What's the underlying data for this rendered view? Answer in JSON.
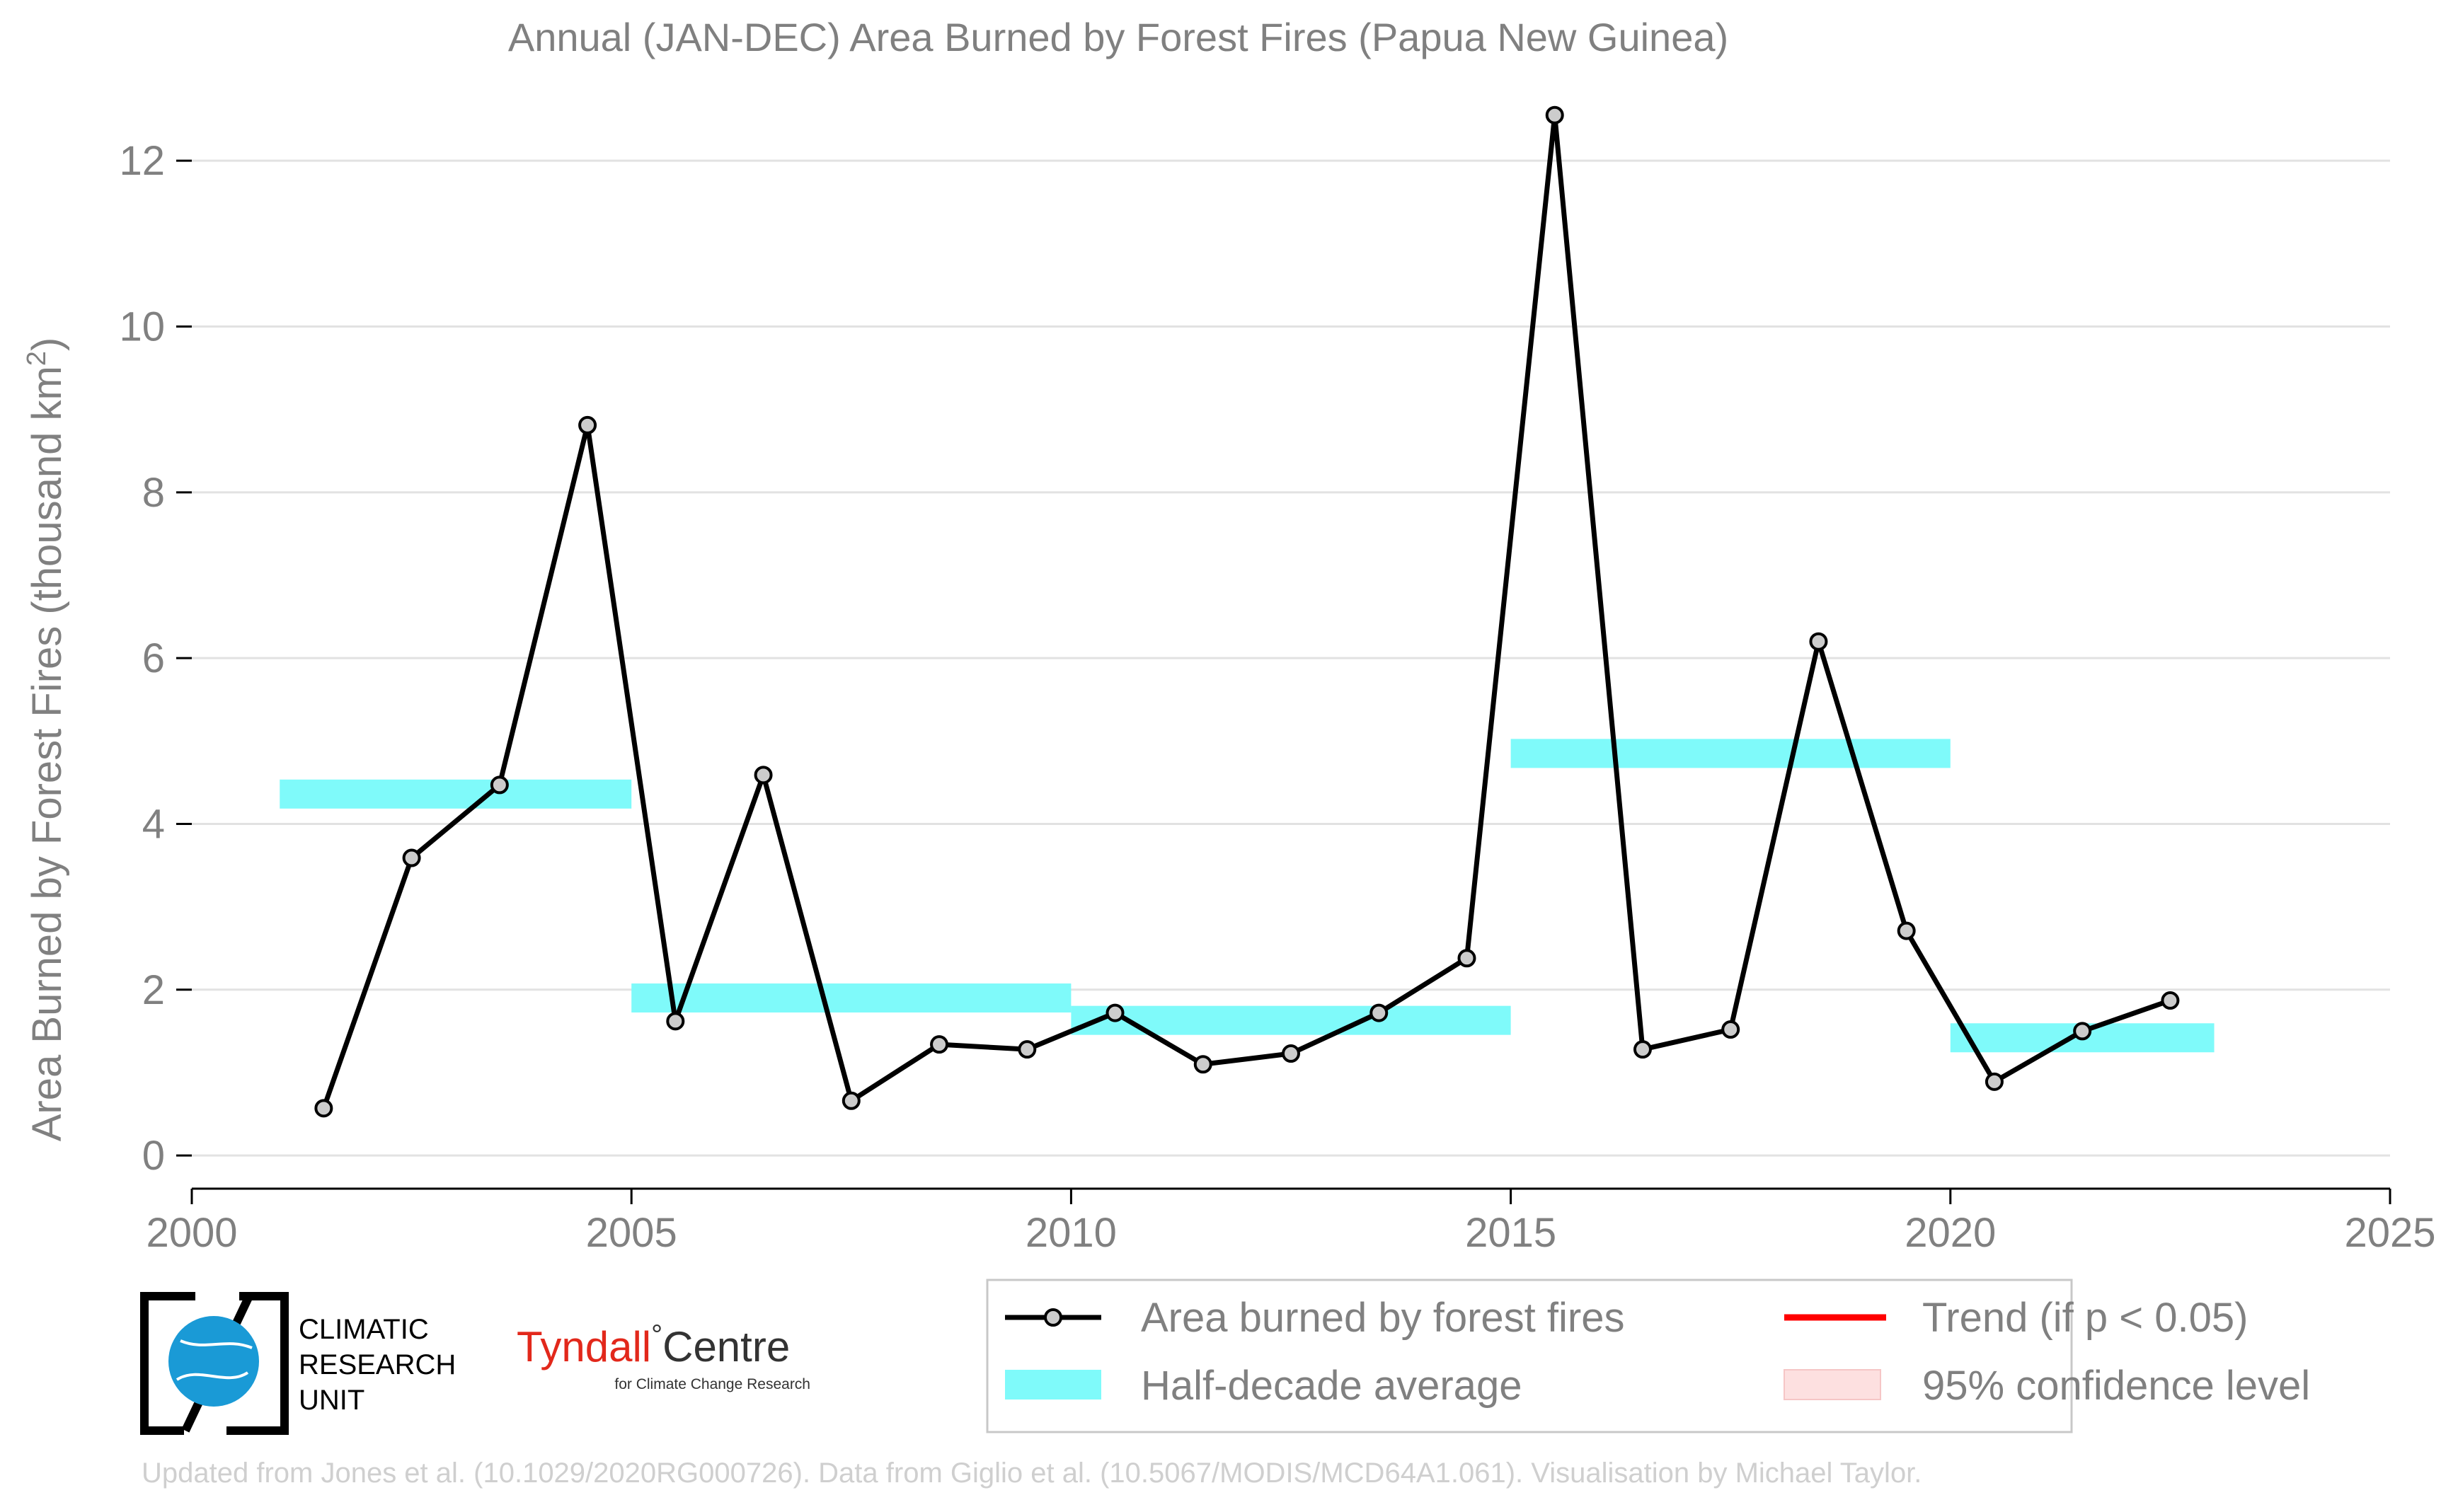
{
  "chart_data": {
    "type": "line",
    "title": "Annual (JAN-DEC) Area Burned by Forest Fires (Papua New Guinea)",
    "ylabel": "Area Burned by Forest Fires (thousand km",
    "ylabel_sup": "2",
    "ylabel_tail": ")",
    "xlabel": "",
    "xlim": [
      2000,
      2025
    ],
    "ylim": [
      -0.4,
      13.0
    ],
    "x_ticks": [
      2000,
      2005,
      2010,
      2015,
      2020,
      2025
    ],
    "y_ticks": [
      0,
      2,
      4,
      6,
      8,
      10,
      12
    ],
    "grid": "horizontal",
    "series": [
      {
        "name": "Area burned by forest fires",
        "color": "#000000",
        "marker_fill": "#cccccc",
        "x": [
          2001.5,
          2002.5,
          2003.5,
          2004.5,
          2005.5,
          2006.5,
          2007.5,
          2008.5,
          2009.5,
          2010.5,
          2011.5,
          2012.5,
          2013.5,
          2014.5,
          2015.5,
          2016.5,
          2017.5,
          2018.5,
          2019.5,
          2020.5,
          2021.5,
          2022.5
        ],
        "y": [
          0.57,
          3.59,
          4.47,
          8.81,
          1.62,
          4.59,
          0.66,
          1.34,
          1.28,
          1.72,
          1.1,
          1.23,
          1.72,
          2.38,
          12.55,
          1.28,
          1.52,
          6.2,
          2.71,
          0.89,
          1.5,
          1.87
        ]
      }
    ],
    "half_decade_average": {
      "name": "Half-decade average",
      "color": "#7ffafa",
      "segments": [
        {
          "x_start": 2001,
          "x_end": 2005,
          "value": 4.36
        },
        {
          "x_start": 2005,
          "x_end": 2010,
          "value": 1.9
        },
        {
          "x_start": 2010,
          "x_end": 2015,
          "value": 1.63
        },
        {
          "x_start": 2015,
          "x_end": 2020,
          "value": 4.85
        },
        {
          "x_start": 2020,
          "x_end": 2023,
          "value": 1.42
        }
      ]
    },
    "legend": {
      "position": "bottom-right",
      "entries": [
        {
          "key": "line",
          "label": "Area burned by forest fires"
        },
        {
          "key": "trend",
          "label": "Trend (if p < 0.05)",
          "color": "#ff0000"
        },
        {
          "key": "band",
          "label": "Half-decade average"
        },
        {
          "key": "ci",
          "label": "95% confidence level",
          "color": "#fde0e0"
        }
      ]
    },
    "footer": "Updated from Jones et al. (10.1029/2020RG000726). Data from Giglio et al. (10.5067/MODIS/MCD64A1.061). Visualisation by Michael Taylor."
  },
  "logos": {
    "cru": [
      "CLIMATIC",
      "RESEARCH",
      "UNIT"
    ],
    "tyndall_main": "Tyndall",
    "tyndall_degree": "°",
    "tyndall_centre": "Centre",
    "tyndall_sub": "for Climate Change Research"
  },
  "colors": {
    "axis_text": "#808080",
    "grid": "#e2e2e2",
    "footer_text": "#cfcfcf",
    "cru_blue": "#1a9ad6",
    "tyndall_red": "#e2281b"
  }
}
